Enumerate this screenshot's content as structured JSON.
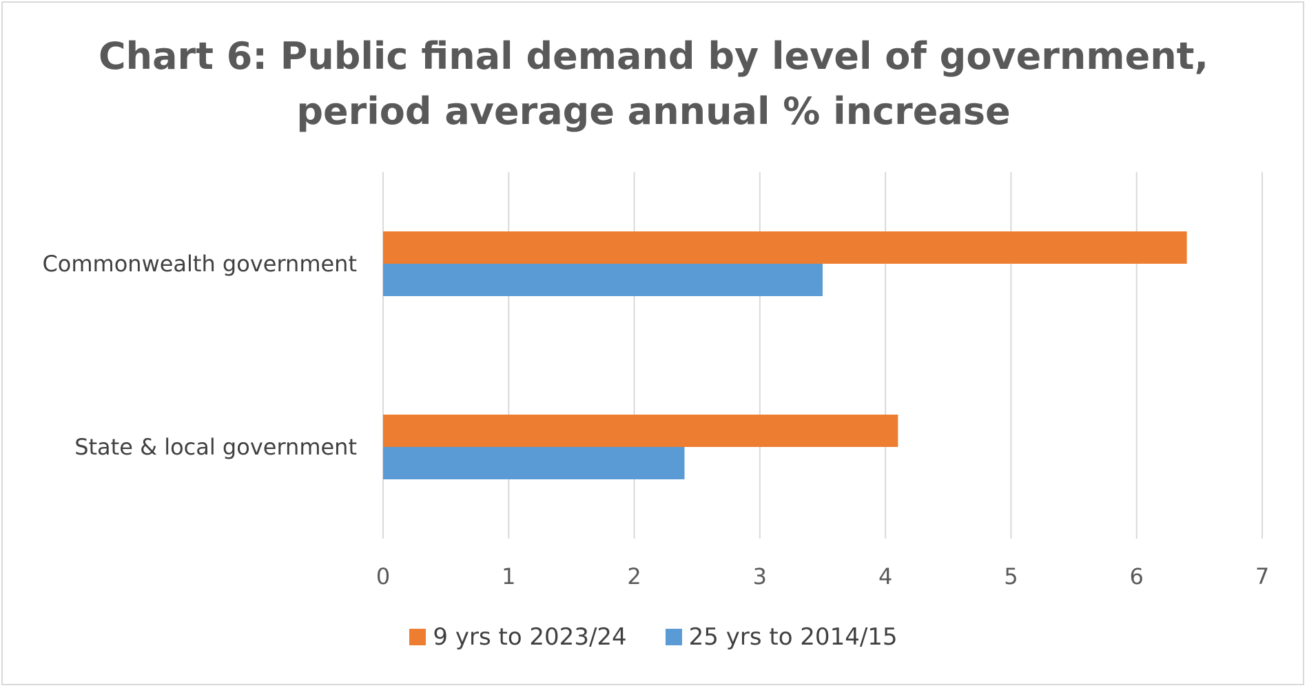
{
  "chart_data": {
    "type": "bar",
    "orientation": "horizontal",
    "title_lines": [
      "Chart 6: Public final demand by level of government,",
      "period average annual % increase"
    ],
    "categories": [
      "Commonwealth government",
      "State & local government"
    ],
    "series": [
      {
        "name": "9 yrs to 2023/24",
        "color": "#ed7d31",
        "values": [
          6.4,
          4.1
        ]
      },
      {
        "name": "25 yrs to 2014/15",
        "color": "#5b9bd5",
        "values": [
          3.5,
          2.4
        ]
      }
    ],
    "xlim": [
      0,
      7
    ],
    "xticks": [
      "0",
      "1",
      "2",
      "3",
      "4",
      "5",
      "6",
      "7"
    ],
    "grid": "vertical",
    "legend_position": "bottom"
  }
}
